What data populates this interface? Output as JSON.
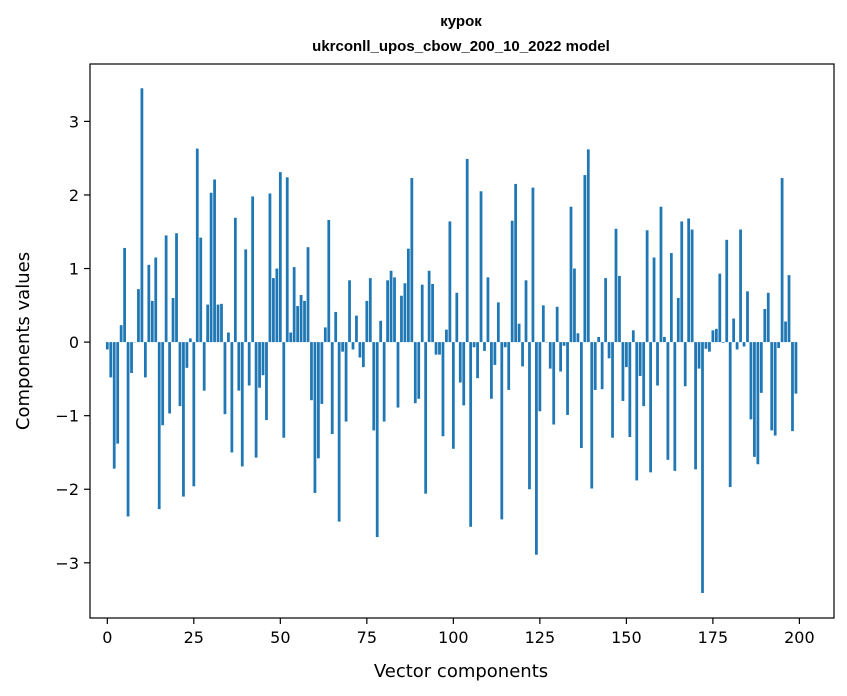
{
  "chart_data": {
    "type": "bar",
    "title": "курок",
    "subtitle": "ukrconll_upos_cbow_200_10_2022 model",
    "xlabel": "Vector components",
    "ylabel": "Components values",
    "xlim": [
      -5,
      210
    ],
    "ylim": [
      -3.75,
      3.78
    ],
    "xticks": [
      0,
      25,
      50,
      75,
      100,
      125,
      150,
      175,
      200
    ],
    "yticks": [
      -3,
      -2,
      -1,
      0,
      1,
      2,
      3
    ],
    "xtick_labels": [
      "0",
      "25",
      "50",
      "75",
      "100",
      "125",
      "150",
      "175",
      "200"
    ],
    "ytick_labels": [
      "−3",
      "−2",
      "−1",
      "0",
      "1",
      "2",
      "3"
    ],
    "grid": false,
    "bar_color": "#1f77b4",
    "x": [
      0,
      1,
      2,
      3,
      4,
      5,
      6,
      7,
      8,
      9,
      10,
      11,
      12,
      13,
      14,
      15,
      16,
      17,
      18,
      19,
      20,
      21,
      22,
      23,
      24,
      25,
      26,
      27,
      28,
      29,
      30,
      31,
      32,
      33,
      34,
      35,
      36,
      37,
      38,
      39,
      40,
      41,
      42,
      43,
      44,
      45,
      46,
      47,
      48,
      49,
      50,
      51,
      52,
      53,
      54,
      55,
      56,
      57,
      58,
      59,
      60,
      61,
      62,
      63,
      64,
      65,
      66,
      67,
      68,
      69,
      70,
      71,
      72,
      73,
      74,
      75,
      76,
      77,
      78,
      79,
      80,
      81,
      82,
      83,
      84,
      85,
      86,
      87,
      88,
      89,
      90,
      91,
      92,
      93,
      94,
      95,
      96,
      97,
      98,
      99,
      100,
      101,
      102,
      103,
      104,
      105,
      106,
      107,
      108,
      109,
      110,
      111,
      112,
      113,
      114,
      115,
      116,
      117,
      118,
      119,
      120,
      121,
      122,
      123,
      124,
      125,
      126,
      127,
      128,
      129,
      130,
      131,
      132,
      133,
      134,
      135,
      136,
      137,
      138,
      139,
      140,
      141,
      142,
      143,
      144,
      145,
      146,
      147,
      148,
      149,
      150,
      151,
      152,
      153,
      154,
      155,
      156,
      157,
      158,
      159,
      160,
      161,
      162,
      163,
      164,
      165,
      166,
      167,
      168,
      169,
      170,
      171,
      172,
      173,
      174,
      175,
      176,
      177,
      178,
      179,
      180,
      181,
      182,
      183,
      184,
      185,
      186,
      187,
      188,
      189,
      190,
      191,
      192,
      193,
      194,
      195,
      196,
      197,
      198,
      199
    ],
    "values": [
      -0.1,
      -0.48,
      -1.72,
      -1.38,
      0.23,
      1.28,
      -2.37,
      -0.42,
      0.0,
      0.72,
      3.45,
      -0.48,
      1.05,
      0.56,
      1.15,
      -2.27,
      -1.13,
      1.45,
      -0.97,
      0.6,
      1.48,
      -0.87,
      -2.1,
      -0.35,
      0.05,
      -1.96,
      2.63,
      1.42,
      -0.66,
      0.51,
      2.03,
      2.21,
      0.51,
      0.52,
      -0.98,
      0.13,
      -1.5,
      1.69,
      -0.66,
      -1.69,
      1.26,
      -0.59,
      1.98,
      -1.57,
      -0.62,
      -0.45,
      -1.06,
      2.02,
      0.87,
      1.0,
      2.31,
      -1.3,
      2.24,
      0.13,
      1.02,
      0.49,
      0.64,
      0.56,
      1.29,
      -0.79,
      -2.05,
      -1.58,
      -0.84,
      0.2,
      1.66,
      -1.25,
      0.41,
      -2.44,
      -0.13,
      -1.08,
      0.84,
      -0.1,
      0.36,
      -0.21,
      -0.34,
      0.56,
      0.87,
      -1.2,
      -2.65,
      0.29,
      -1.08,
      0.84,
      0.97,
      0.88,
      -0.89,
      0.63,
      0.8,
      1.27,
      2.23,
      -0.83,
      -0.77,
      0.78,
      -2.06,
      0.97,
      0.79,
      -0.17,
      -0.17,
      -1.28,
      0.17,
      1.64,
      -1.45,
      0.67,
      -0.55,
      -0.86,
      2.49,
      -2.51,
      -0.07,
      -0.49,
      2.05,
      -0.12,
      0.88,
      -0.77,
      -0.31,
      0.54,
      -2.41,
      -0.07,
      -0.65,
      1.65,
      2.15,
      0.25,
      -0.33,
      0.84,
      -2.0,
      2.1,
      -2.89,
      -0.94,
      0.5,
      0.0,
      -0.36,
      -1.12,
      0.48,
      -0.4,
      -0.05,
      -0.99,
      1.84,
      1.0,
      0.12,
      -1.44,
      2.27,
      2.62,
      -1.99,
      -0.65,
      0.07,
      -0.64,
      0.87,
      -0.22,
      -1.3,
      1.54,
      0.9,
      -0.8,
      -0.34,
      -1.29,
      0.16,
      -1.88,
      -0.46,
      -0.87,
      1.52,
      -1.77,
      1.15,
      -0.59,
      1.84,
      0.07,
      -1.6,
      1.21,
      -1.75,
      0.6,
      1.64,
      -0.6,
      1.68,
      1.53,
      -1.73,
      -0.36,
      -3.41,
      -0.09,
      -0.13,
      0.16,
      0.18,
      0.93,
      -0.01,
      1.39,
      -1.97,
      0.32,
      -0.1,
      1.53,
      -0.06,
      0.69,
      -1.05,
      -1.56,
      -1.66,
      -0.69,
      0.45,
      0.67,
      -1.2,
      -1.27,
      -0.08,
      2.23,
      0.28,
      0.91,
      -1.21,
      -0.7
    ]
  }
}
